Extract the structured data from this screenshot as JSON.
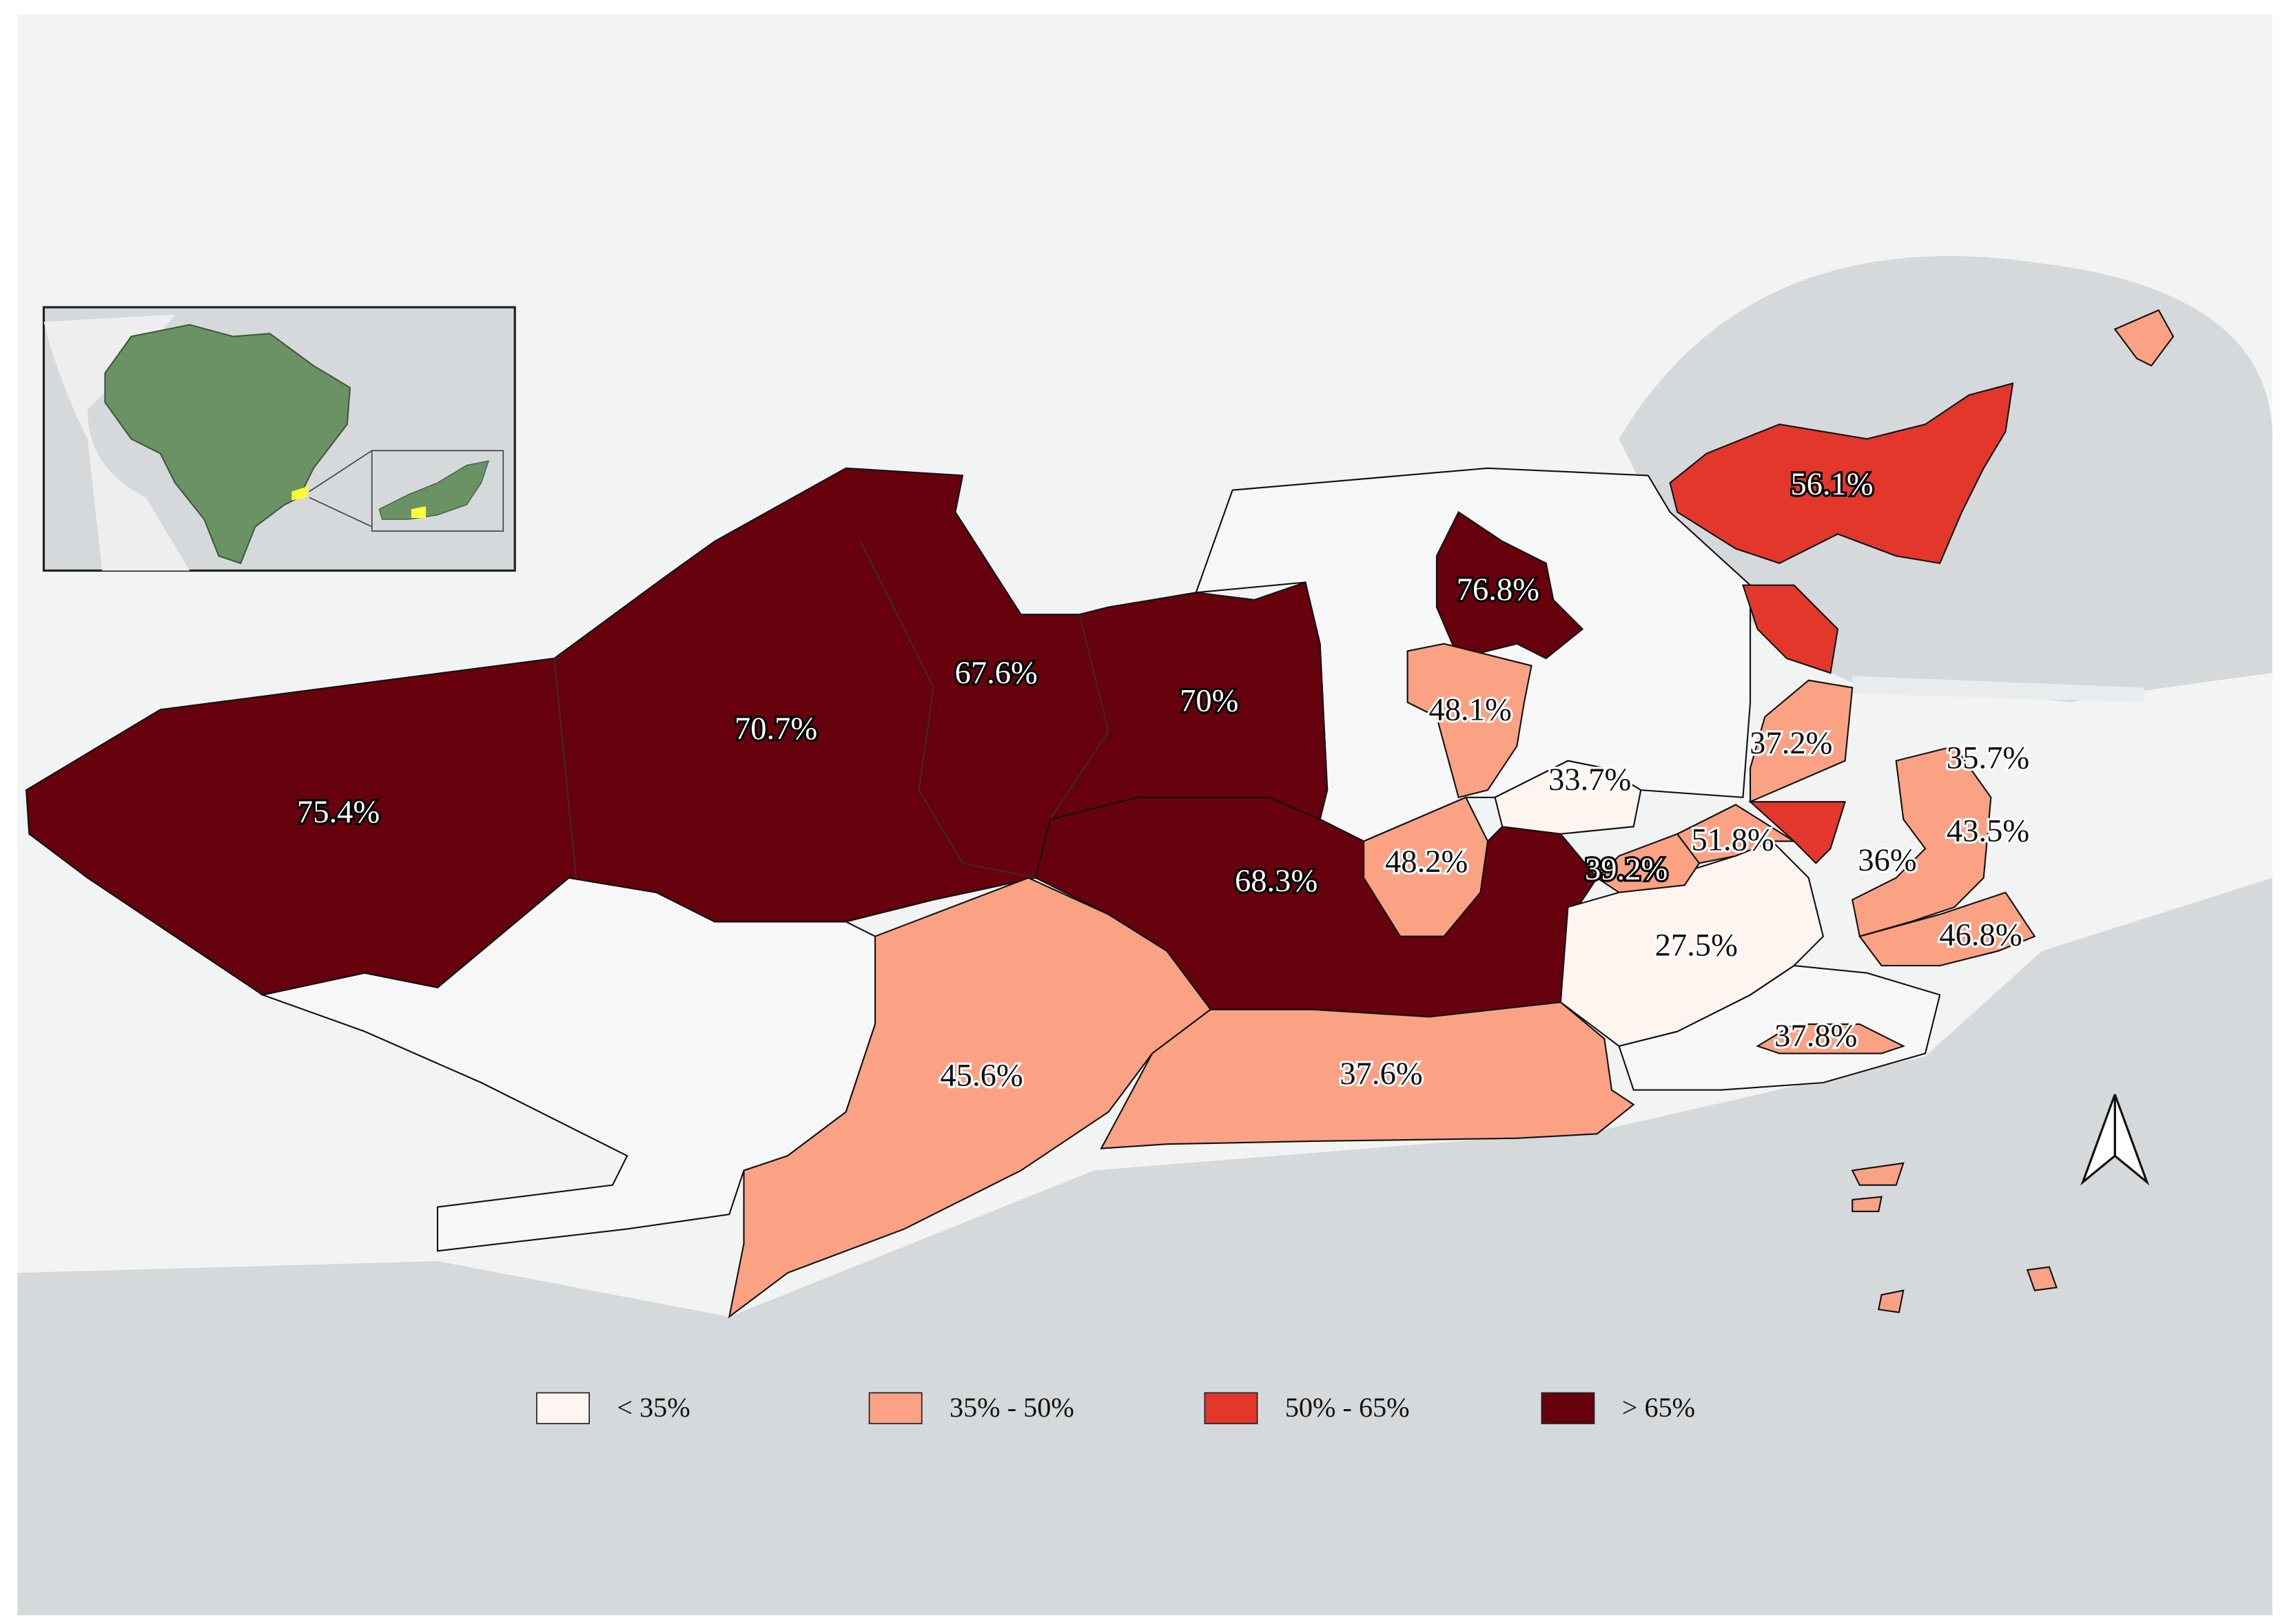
{
  "regions": [
    {
      "label": "75.4%"
    },
    {
      "label": "70.7%"
    },
    {
      "label": "67.6%"
    },
    {
      "label": "70%"
    },
    {
      "label": "68.3%"
    },
    {
      "label": "76.8%"
    },
    {
      "label": "48.1%"
    },
    {
      "label": "48.2%"
    },
    {
      "label": "33.7%"
    },
    {
      "label": "37.2%"
    },
    {
      "label": "56.1%"
    },
    {
      "label": "39.2%"
    },
    {
      "label": "51.8%"
    },
    {
      "label": "27.5%"
    },
    {
      "label": "35.7%"
    },
    {
      "label": "43.5%"
    },
    {
      "label": "36%"
    },
    {
      "label": "46.8%"
    },
    {
      "label": "37.8%"
    },
    {
      "label": "45.6%"
    },
    {
      "label": "37.6%"
    }
  ],
  "legend": [
    {
      "label": "< 35%",
      "color": "#fff5f0"
    },
    {
      "label": "35% - 50%",
      "color": "#fba284"
    },
    {
      "label": "50% - 65%",
      "color": "#e3372b"
    },
    {
      "label": "> 65%",
      "color": "#67000d"
    }
  ]
}
